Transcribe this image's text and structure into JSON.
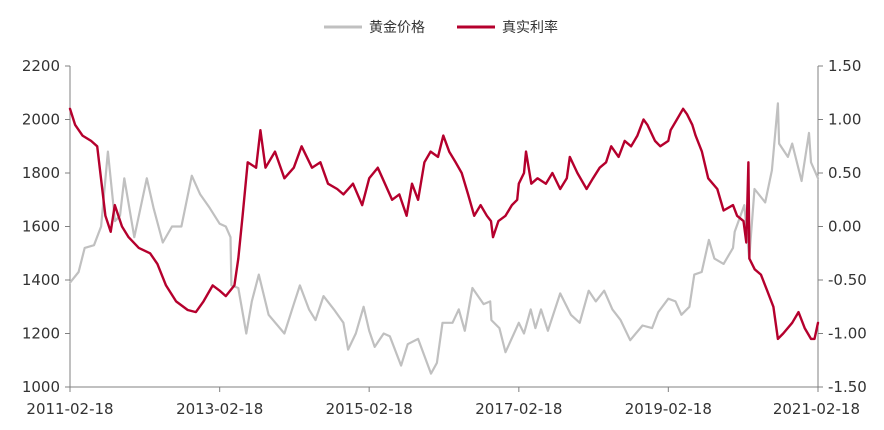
{
  "chart_data": {
    "type": "line",
    "title": "",
    "xlabel": "",
    "ylabel_left": "",
    "ylabel_right": "",
    "legend_position": "top-center",
    "grid": false,
    "x_tick_labels": [
      "2011-02-18",
      "2013-02-18",
      "2015-02-18",
      "2017-02-18",
      "2019-02-18",
      "2021-02-18"
    ],
    "x_range": [
      "2011-02-18",
      "2021-02-18"
    ],
    "y_left": {
      "ylim": [
        1000,
        2200
      ],
      "ticks": [
        "1000",
        "1200",
        "1400",
        "1600",
        "1800",
        "2000",
        "2200"
      ]
    },
    "y_right": {
      "ylim": [
        -1.5,
        1.5
      ],
      "ticks": [
        "-1.50",
        "-1.00",
        "-0.50",
        "0.00",
        "0.50",
        "1.00",
        "1.50"
      ]
    },
    "series": [
      {
        "name": "黄金价格",
        "axis": "left",
        "color": "#c0c0c0",
        "points": [
          [
            "2011-02-18",
            1390
          ],
          [
            "2011-04-01",
            1430
          ],
          [
            "2011-05-01",
            1520
          ],
          [
            "2011-06-15",
            1530
          ],
          [
            "2011-07-20",
            1600
          ],
          [
            "2011-08-22",
            1880
          ],
          [
            "2011-09-26",
            1620
          ],
          [
            "2011-10-20",
            1640
          ],
          [
            "2011-11-10",
            1780
          ],
          [
            "2011-12-29",
            1560
          ],
          [
            "2012-02-28",
            1780
          ],
          [
            "2012-04-01",
            1670
          ],
          [
            "2012-05-16",
            1540
          ],
          [
            "2012-06-30",
            1600
          ],
          [
            "2012-08-15",
            1600
          ],
          [
            "2012-10-05",
            1790
          ],
          [
            "2012-11-15",
            1720
          ],
          [
            "2012-12-31",
            1670
          ],
          [
            "2013-02-18",
            1610
          ],
          [
            "2013-03-20",
            1600
          ],
          [
            "2013-04-12",
            1560
          ],
          [
            "2013-04-16",
            1380
          ],
          [
            "2013-05-20",
            1370
          ],
          [
            "2013-06-28",
            1200
          ],
          [
            "2013-07-25",
            1320
          ],
          [
            "2013-08-28",
            1420
          ],
          [
            "2013-10-15",
            1270
          ],
          [
            "2013-12-31",
            1200
          ],
          [
            "2014-02-15",
            1310
          ],
          [
            "2014-03-17",
            1380
          ],
          [
            "2014-04-30",
            1290
          ],
          [
            "2014-06-01",
            1250
          ],
          [
            "2014-07-10",
            1340
          ],
          [
            "2014-08-30",
            1290
          ],
          [
            "2014-10-15",
            1240
          ],
          [
            "2014-11-07",
            1140
          ],
          [
            "2014-12-15",
            1200
          ],
          [
            "2015-01-22",
            1300
          ],
          [
            "2015-02-18",
            1210
          ],
          [
            "2015-03-17",
            1150
          ],
          [
            "2015-04-30",
            1200
          ],
          [
            "2015-05-30",
            1190
          ],
          [
            "2015-07-24",
            1080
          ],
          [
            "2015-08-25",
            1160
          ],
          [
            "2015-10-15",
            1180
          ],
          [
            "2015-12-17",
            1050
          ],
          [
            "2016-01-15",
            1090
          ],
          [
            "2016-02-11",
            1240
          ],
          [
            "2016-03-31",
            1240
          ],
          [
            "2016-05-01",
            1290
          ],
          [
            "2016-05-30",
            1210
          ],
          [
            "2016-07-06",
            1370
          ],
          [
            "2016-08-30",
            1310
          ],
          [
            "2016-10-01",
            1320
          ],
          [
            "2016-10-07",
            1250
          ],
          [
            "2016-11-15",
            1220
          ],
          [
            "2016-12-15",
            1130
          ],
          [
            "2017-01-31",
            1210
          ],
          [
            "2017-02-18",
            1240
          ],
          [
            "2017-03-15",
            1200
          ],
          [
            "2017-04-17",
            1290
          ],
          [
            "2017-05-10",
            1220
          ],
          [
            "2017-06-06",
            1290
          ],
          [
            "2017-07-10",
            1210
          ],
          [
            "2017-09-08",
            1350
          ],
          [
            "2017-10-30",
            1270
          ],
          [
            "2017-12-12",
            1240
          ],
          [
            "2018-01-25",
            1360
          ],
          [
            "2018-03-01",
            1320
          ],
          [
            "2018-04-11",
            1360
          ],
          [
            "2018-05-21",
            1290
          ],
          [
            "2018-06-30",
            1250
          ],
          [
            "2018-08-16",
            1175
          ],
          [
            "2018-10-15",
            1230
          ],
          [
            "2018-12-01",
            1220
          ],
          [
            "2018-12-31",
            1280
          ],
          [
            "2019-02-18",
            1330
          ],
          [
            "2019-03-25",
            1320
          ],
          [
            "2019-04-23",
            1270
          ],
          [
            "2019-06-01",
            1300
          ],
          [
            "2019-06-25",
            1420
          ],
          [
            "2019-07-31",
            1430
          ],
          [
            "2019-09-04",
            1550
          ],
          [
            "2019-10-01",
            1480
          ],
          [
            "2019-11-15",
            1460
          ],
          [
            "2019-12-31",
            1520
          ],
          [
            "2020-01-08",
            1580
          ],
          [
            "2020-02-24",
            1680
          ],
          [
            "2020-03-19",
            1480
          ],
          [
            "2020-04-14",
            1740
          ],
          [
            "2020-06-05",
            1690
          ],
          [
            "2020-07-08",
            1810
          ],
          [
            "2020-08-06",
            2060
          ],
          [
            "2020-08-12",
            1910
          ],
          [
            "2020-09-24",
            1860
          ],
          [
            "2020-10-15",
            1910
          ],
          [
            "2020-11-30",
            1770
          ],
          [
            "2021-01-05",
            1950
          ],
          [
            "2021-01-15",
            1840
          ],
          [
            "2021-02-18",
            1780
          ]
        ]
      },
      {
        "name": "真实利率",
        "axis": "right",
        "color": "#b5002d",
        "points": [
          [
            "2011-02-18",
            1.1
          ],
          [
            "2011-03-15",
            0.95
          ],
          [
            "2011-04-20",
            0.85
          ],
          [
            "2011-06-01",
            0.8
          ],
          [
            "2011-07-01",
            0.75
          ],
          [
            "2011-08-10",
            0.1
          ],
          [
            "2011-09-05",
            -0.05
          ],
          [
            "2011-09-25",
            0.2
          ],
          [
            "2011-10-30",
            0.0
          ],
          [
            "2011-12-01",
            -0.1
          ],
          [
            "2012-01-20",
            -0.2
          ],
          [
            "2012-03-15",
            -0.25
          ],
          [
            "2012-04-20",
            -0.35
          ],
          [
            "2012-06-01",
            -0.55
          ],
          [
            "2012-07-20",
            -0.7
          ],
          [
            "2012-09-15",
            -0.78
          ],
          [
            "2012-10-25",
            -0.8
          ],
          [
            "2012-12-01",
            -0.7
          ],
          [
            "2013-01-15",
            -0.55
          ],
          [
            "2013-02-18",
            -0.6
          ],
          [
            "2013-03-20",
            -0.65
          ],
          [
            "2013-05-01",
            -0.55
          ],
          [
            "2013-05-20",
            -0.3
          ],
          [
            "2013-06-10",
            0.1
          ],
          [
            "2013-07-05",
            0.6
          ],
          [
            "2013-08-15",
            0.55
          ],
          [
            "2013-09-05",
            0.9
          ],
          [
            "2013-09-30",
            0.55
          ],
          [
            "2013-11-15",
            0.7
          ],
          [
            "2013-12-31",
            0.45
          ],
          [
            "2014-02-15",
            0.55
          ],
          [
            "2014-03-25",
            0.75
          ],
          [
            "2014-05-15",
            0.55
          ],
          [
            "2014-06-25",
            0.6
          ],
          [
            "2014-08-01",
            0.4
          ],
          [
            "2014-09-15",
            0.35
          ],
          [
            "2014-10-15",
            0.3
          ],
          [
            "2014-12-01",
            0.4
          ],
          [
            "2015-01-15",
            0.2
          ],
          [
            "2015-02-18",
            0.45
          ],
          [
            "2015-04-01",
            0.55
          ],
          [
            "2015-06-10",
            0.25
          ],
          [
            "2015-07-15",
            0.3
          ],
          [
            "2015-08-20",
            0.1
          ],
          [
            "2015-09-15",
            0.4
          ],
          [
            "2015-10-15",
            0.25
          ],
          [
            "2015-11-15",
            0.6
          ],
          [
            "2015-12-15",
            0.7
          ],
          [
            "2016-01-20",
            0.65
          ],
          [
            "2016-02-15",
            0.85
          ],
          [
            "2016-03-15",
            0.7
          ],
          [
            "2016-04-15",
            0.6
          ],
          [
            "2016-05-15",
            0.5
          ],
          [
            "2016-06-15",
            0.3
          ],
          [
            "2016-07-15",
            0.1
          ],
          [
            "2016-08-15",
            0.2
          ],
          [
            "2016-09-15",
            0.1
          ],
          [
            "2016-10-05",
            0.05
          ],
          [
            "2016-10-15",
            -0.1
          ],
          [
            "2016-11-10",
            0.05
          ],
          [
            "2016-12-15",
            0.1
          ],
          [
            "2017-01-15",
            0.2
          ],
          [
            "2017-02-10",
            0.25
          ],
          [
            "2017-02-18",
            0.4
          ],
          [
            "2017-03-15",
            0.5
          ],
          [
            "2017-03-25",
            0.7
          ],
          [
            "2017-04-20",
            0.4
          ],
          [
            "2017-05-20",
            0.45
          ],
          [
            "2017-06-30",
            0.4
          ],
          [
            "2017-08-01",
            0.5
          ],
          [
            "2017-09-08",
            0.35
          ],
          [
            "2017-10-10",
            0.45
          ],
          [
            "2017-10-25",
            0.65
          ],
          [
            "2017-12-01",
            0.5
          ],
          [
            "2018-01-15",
            0.35
          ],
          [
            "2018-02-15",
            0.45
          ],
          [
            "2018-03-20",
            0.55
          ],
          [
            "2018-04-20",
            0.6
          ],
          [
            "2018-05-15",
            0.75
          ],
          [
            "2018-06-20",
            0.65
          ],
          [
            "2018-07-20",
            0.8
          ],
          [
            "2018-08-20",
            0.75
          ],
          [
            "2018-09-20",
            0.85
          ],
          [
            "2018-10-20",
            1.0
          ],
          [
            "2018-11-08",
            0.95
          ],
          [
            "2018-12-15",
            0.8
          ],
          [
            "2019-01-10",
            0.75
          ],
          [
            "2019-02-18",
            0.8
          ],
          [
            "2019-03-01",
            0.9
          ],
          [
            "2019-04-01",
            1.0
          ],
          [
            "2019-05-01",
            1.1
          ],
          [
            "2019-05-20",
            1.05
          ],
          [
            "2019-06-15",
            0.95
          ],
          [
            "2019-07-01",
            0.85
          ],
          [
            "2019-08-01",
            0.7
          ],
          [
            "2019-09-01",
            0.45
          ],
          [
            "2019-10-15",
            0.35
          ],
          [
            "2019-11-15",
            0.15
          ],
          [
            "2019-12-31",
            0.2
          ],
          [
            "2020-01-20",
            0.1
          ],
          [
            "2020-02-20",
            0.05
          ],
          [
            "2020-03-05",
            -0.15
          ],
          [
            "2020-03-15",
            0.6
          ],
          [
            "2020-03-20",
            -0.3
          ],
          [
            "2020-04-15",
            -0.4
          ],
          [
            "2020-05-15",
            -0.45
          ],
          [
            "2020-06-15",
            -0.6
          ],
          [
            "2020-07-15",
            -0.75
          ],
          [
            "2020-08-06",
            -1.05
          ],
          [
            "2020-09-01",
            -1.0
          ],
          [
            "2020-10-15",
            -0.9
          ],
          [
            "2020-11-15",
            -0.8
          ],
          [
            "2020-12-15",
            -0.95
          ],
          [
            "2021-01-15",
            -1.05
          ],
          [
            "2021-02-01",
            -1.05
          ],
          [
            "2021-02-18",
            -0.9
          ]
        ]
      }
    ]
  }
}
